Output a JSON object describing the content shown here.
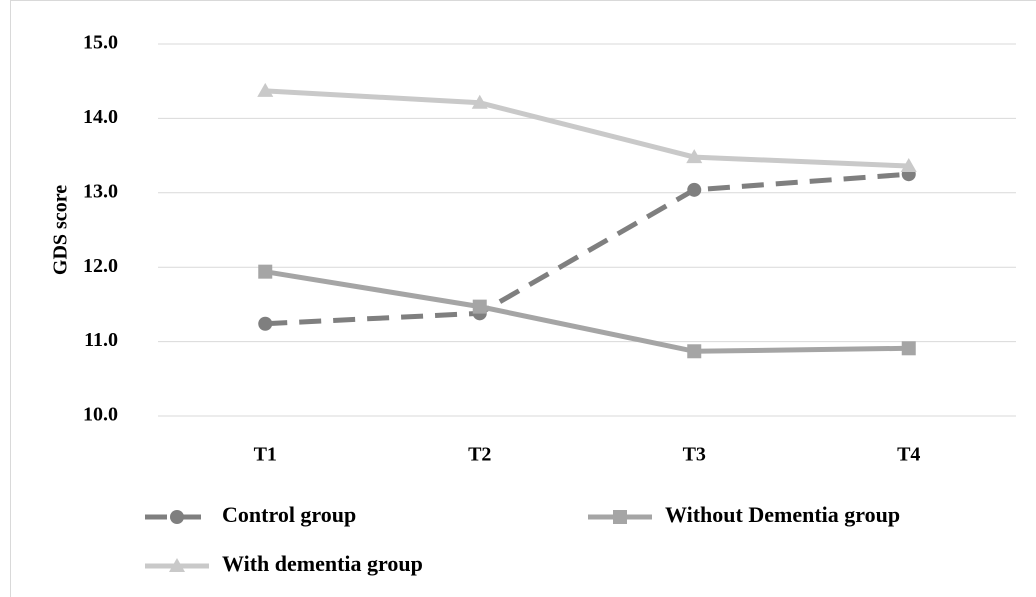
{
  "chart_data": {
    "type": "line",
    "y_label": "GDS score",
    "categories": [
      "T1",
      "T2",
      "T3",
      "T4"
    ],
    "series": [
      {
        "name": "Control group",
        "color": "#7f7f7f",
        "dash": true,
        "marker": "circle",
        "values": [
          11.24,
          11.38,
          13.04,
          13.25
        ]
      },
      {
        "name": "Without Dementia group",
        "color": "#a5a5a5",
        "dash": false,
        "marker": "square",
        "values": [
          11.94,
          11.47,
          10.87,
          10.91
        ]
      },
      {
        "name": "With dementia group",
        "color": "#c9c9c9",
        "dash": false,
        "marker": "triangle",
        "values": [
          14.37,
          14.21,
          13.48,
          13.36
        ]
      }
    ],
    "ylim": [
      10,
      15
    ],
    "yticks": [
      {
        "value": 10,
        "label": "10.0"
      },
      {
        "value": 11,
        "label": "11.0"
      },
      {
        "value": 12,
        "label": "12.0"
      },
      {
        "value": 13,
        "label": "13.0"
      },
      {
        "value": 14,
        "label": "14.0"
      },
      {
        "value": 15,
        "label": "15.0"
      }
    ],
    "grid": true,
    "legend": "bottom"
  }
}
